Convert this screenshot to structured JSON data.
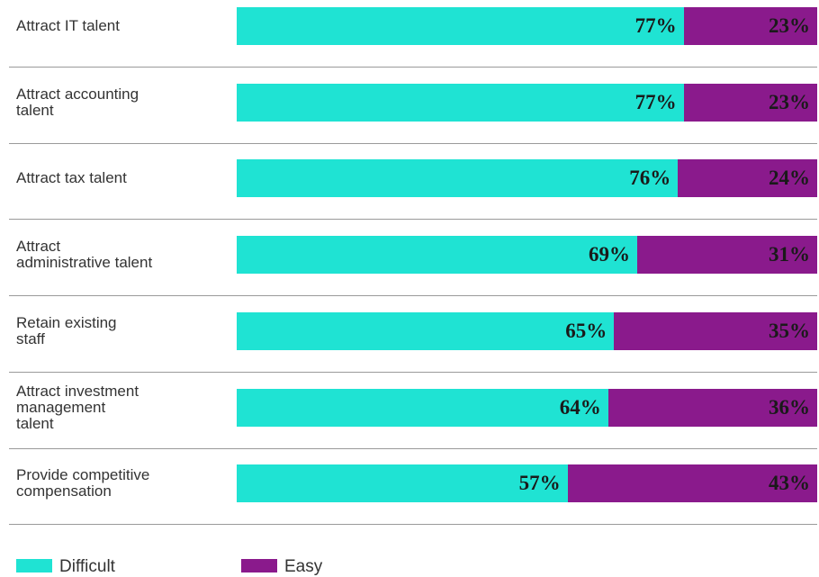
{
  "chart_data": {
    "type": "stacked-bar",
    "orientation": "horizontal",
    "categories": [
      "Attract IT talent",
      "Attract accounting\ntalent",
      "Attract tax talent",
      "Attract\nadministrative talent",
      "Retain existing\nstaff",
      "Attract investment\nmanagement\ntalent",
      "Provide competitive\ncompensation"
    ],
    "series": [
      {
        "name": "Difficult",
        "color": "#1fe3d3",
        "values": [
          77,
          77,
          76,
          69,
          65,
          64,
          57
        ],
        "value_labels": [
          "77%",
          "77%",
          "76%",
          "69%",
          "65%",
          "64%",
          "57%"
        ]
      },
      {
        "name": "Easy",
        "color": "#8a1a8c",
        "values": [
          23,
          23,
          24,
          31,
          35,
          36,
          43
        ],
        "value_labels": [
          "23%",
          "23%",
          "24%",
          "31%",
          "35%",
          "36%",
          "43%"
        ]
      }
    ]
  }
}
